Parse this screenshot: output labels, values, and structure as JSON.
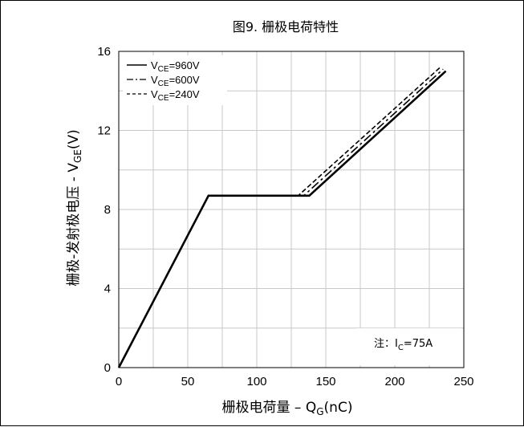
{
  "chart_data": {
    "type": "line",
    "title": "图9. 栅极电荷特性",
    "xlabel_main": "栅极电荷量 – Q",
    "xlabel_sub": "G",
    "xlabel_tail": "(nC)",
    "ylabel_main": "栅极-发射极电压 - V",
    "ylabel_sub": "GE",
    "ylabel_tail": "(V)",
    "xlim": [
      0,
      250
    ],
    "ylim": [
      0,
      16
    ],
    "xticks": [
      "0",
      "50",
      "100",
      "150",
      "200",
      "250"
    ],
    "yticks": [
      "0",
      "4",
      "8",
      "12",
      "16"
    ],
    "grid": true,
    "legend_position": "top-left",
    "series": [
      {
        "name_main": "V",
        "name_sub": "CE",
        "name_tail": "=960V",
        "dash": "solid",
        "x": [
          0,
          65,
          138,
          237
        ],
        "y": [
          0,
          8.7,
          8.7,
          15.0
        ]
      },
      {
        "name_main": "V",
        "name_sub": "CE",
        "name_tail": "=600V",
        "dash": "dashdot",
        "x": [
          0,
          65,
          134,
          235
        ],
        "y": [
          0,
          8.7,
          8.7,
          15.1
        ]
      },
      {
        "name_main": "V",
        "name_sub": "CE",
        "name_tail": "=240V",
        "dash": "dashed",
        "x": [
          0,
          65,
          130,
          233
        ],
        "y": [
          0,
          8.7,
          8.7,
          15.2
        ]
      }
    ],
    "note": {
      "prefix": "注：I",
      "sub": "C",
      "tail": "=75A"
    }
  }
}
